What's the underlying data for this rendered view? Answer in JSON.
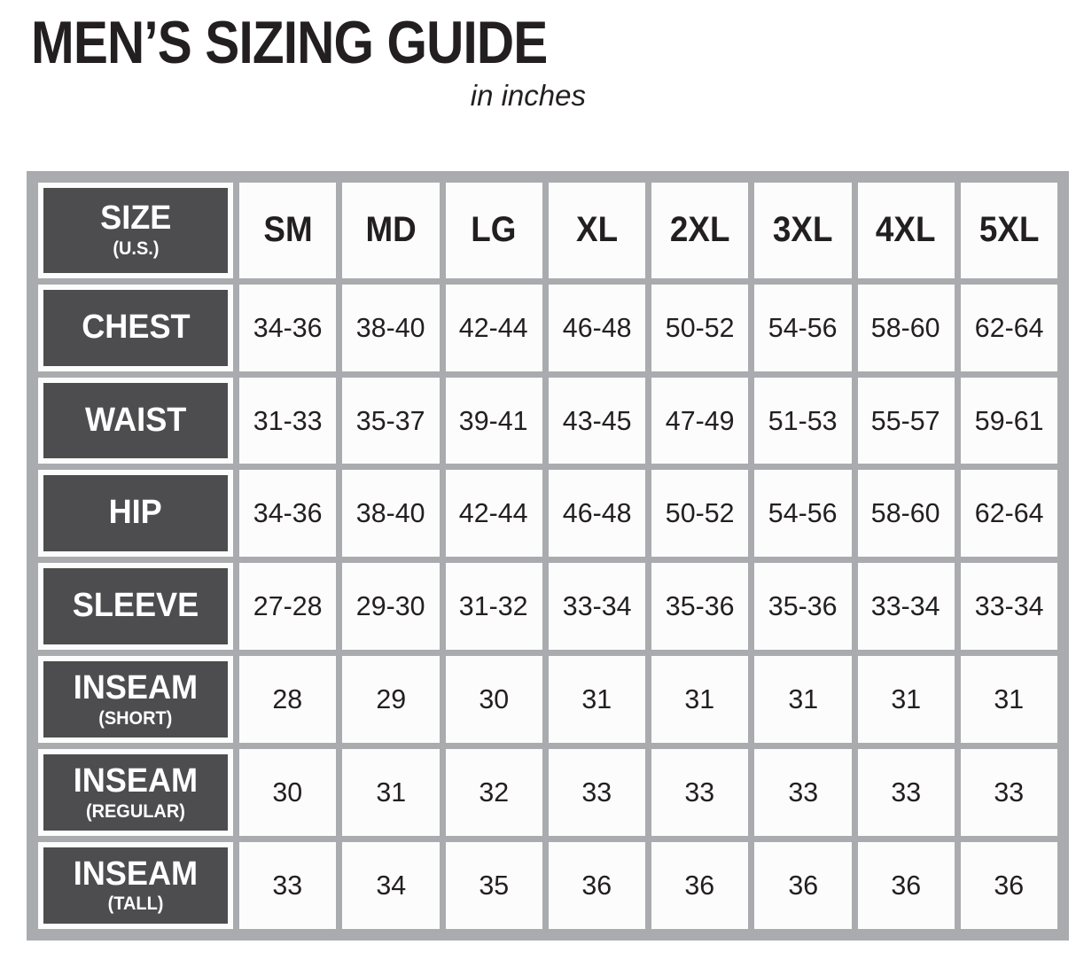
{
  "title": "MEN’S SIZING GUIDE",
  "subtitle": "in inches",
  "colors": {
    "label_cell_bg": "#4d4d4f",
    "label_text": "#ffffff",
    "frame_gray": "#a9abae",
    "cell_bg": "#fcfcfd",
    "text_dark": "#231f20",
    "page_bg": "#ffffff"
  },
  "chart_data": {
    "type": "table",
    "title": "MEN’S SIZING GUIDE",
    "subtitle": "in inches",
    "units": "inches",
    "header_row": {
      "label": "SIZE",
      "sublabel": "(U.S.)",
      "sizes": [
        "SM",
        "MD",
        "LG",
        "XL",
        "2XL",
        "3XL",
        "4XL",
        "5XL"
      ]
    },
    "rows": [
      {
        "label": "CHEST",
        "sublabel": "",
        "values": [
          "34-36",
          "38-40",
          "42-44",
          "46-48",
          "50-52",
          "54-56",
          "58-60",
          "62-64"
        ]
      },
      {
        "label": "WAIST",
        "sublabel": "",
        "values": [
          "31-33",
          "35-37",
          "39-41",
          "43-45",
          "47-49",
          "51-53",
          "55-57",
          "59-61"
        ]
      },
      {
        "label": "HIP",
        "sublabel": "",
        "values": [
          "34-36",
          "38-40",
          "42-44",
          "46-48",
          "50-52",
          "54-56",
          "58-60",
          "62-64"
        ]
      },
      {
        "label": "SLEEVE",
        "sublabel": "",
        "values": [
          "27-28",
          "29-30",
          "31-32",
          "33-34",
          "35-36",
          "35-36",
          "33-34",
          "33-34"
        ]
      },
      {
        "label": "INSEAM",
        "sublabel": "(SHORT)",
        "values": [
          "28",
          "29",
          "30",
          "31",
          "31",
          "31",
          "31",
          "31"
        ]
      },
      {
        "label": "INSEAM",
        "sublabel": "(REGULAR)",
        "values": [
          "30",
          "31",
          "32",
          "33",
          "33",
          "33",
          "33",
          "33"
        ]
      },
      {
        "label": "INSEAM",
        "sublabel": "(TALL)",
        "values": [
          "33",
          "34",
          "35",
          "36",
          "36",
          "36",
          "36",
          "36"
        ]
      }
    ],
    "layout": {
      "grid": "on",
      "label_column_position": "left",
      "header_position": "top"
    }
  }
}
